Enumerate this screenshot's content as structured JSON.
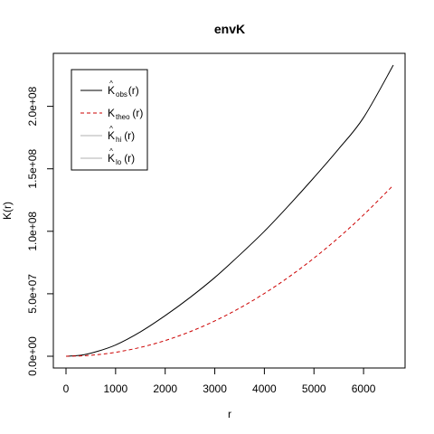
{
  "chart_data": {
    "type": "line",
    "title": "envK",
    "xlabel": "r",
    "ylabel": "K(r)",
    "xlim": [
      0,
      6600
    ],
    "ylim": [
      0,
      233000000
    ],
    "x_ticks": [
      0,
      1000,
      2000,
      3000,
      4000,
      5000,
      6000
    ],
    "x_tick_labels": [
      "0",
      "1000",
      "2000",
      "3000",
      "4000",
      "5000",
      "6000"
    ],
    "y_ticks": [
      0,
      50000000,
      100000000,
      150000000,
      200000000
    ],
    "y_tick_labels": [
      "0.0e+00",
      "5.0e+07",
      "1.0e+08",
      "1.5e+08",
      "2.0e+08"
    ],
    "grid": false,
    "legend_position": "top-left",
    "series": [
      {
        "name": "obs",
        "legend_main": "K",
        "legend_sub": "obs",
        "legend_hat": true,
        "legend_suffix": "(r)",
        "color": "#000000",
        "style": "solid",
        "x": [
          0,
          300,
          600,
          1000,
          1500,
          2000,
          2500,
          3000,
          3500,
          4000,
          4500,
          5000,
          5500,
          6000,
          6600
        ],
        "values": [
          0,
          800000,
          3500000,
          9000000,
          19500000,
          32500000,
          47000000,
          63000000,
          81000000,
          100000000,
          121000000,
          143000000,
          166000000,
          191000000,
          233000000
        ]
      },
      {
        "name": "theo",
        "legend_main": "K",
        "legend_sub": "theo",
        "legend_hat": false,
        "legend_suffix": "(r)",
        "color": "#cc0000",
        "style": "dashed",
        "x": [
          0,
          300,
          600,
          1000,
          1500,
          2000,
          2500,
          3000,
          3500,
          4000,
          4500,
          5000,
          5500,
          6000,
          6600
        ],
        "values": [
          0,
          283000,
          1131000,
          3142000,
          7069000,
          12566000,
          19635000,
          28274000,
          38485000,
          50265000,
          63617000,
          78540000,
          95033000,
          113097000,
          136848000
        ]
      },
      {
        "name": "hi",
        "legend_main": "K",
        "legend_sub": "hi",
        "legend_hat": true,
        "legend_suffix": "(r)",
        "color": "#b0b0b0",
        "style": "solid",
        "x": [],
        "values": []
      },
      {
        "name": "lo",
        "legend_main": "K",
        "legend_sub": "lo",
        "legend_hat": true,
        "legend_suffix": "(r)",
        "color": "#b0b0b0",
        "style": "solid",
        "x": [],
        "values": []
      }
    ]
  }
}
